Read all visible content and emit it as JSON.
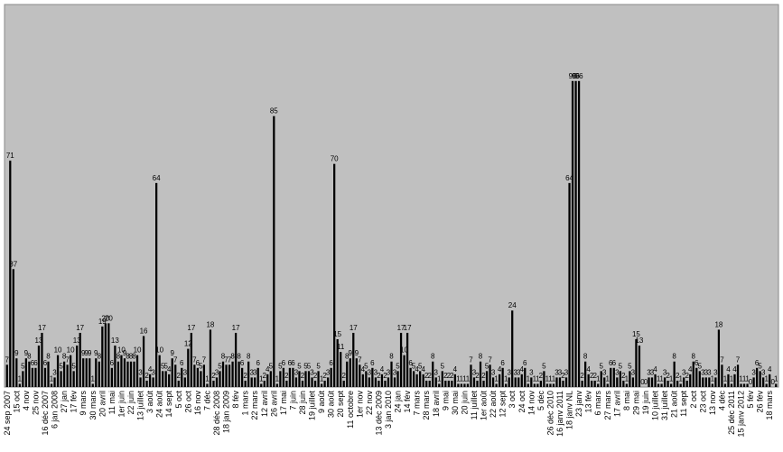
{
  "chart_data": {
    "type": "bar",
    "color": "#000000",
    "background": "#c0c0c0",
    "ylim": [
      0,
      120
    ],
    "categories": [
      "24 sep 2007",
      null,
      null,
      "15 oct",
      null,
      null,
      "4 nov",
      null,
      null,
      "25 nov",
      null,
      null,
      "16 déc 2007",
      null,
      null,
      "6 jan 2008",
      null,
      null,
      "27 jan",
      null,
      null,
      "17 fév",
      null,
      null,
      "9 mars",
      null,
      null,
      "30 mars",
      null,
      null,
      "20 avril",
      null,
      null,
      "11 mai",
      null,
      null,
      "1er juin",
      null,
      null,
      "22 juin",
      null,
      null,
      "13 juillet",
      null,
      null,
      "3 août",
      null,
      null,
      "24 août",
      null,
      null,
      "14 sept",
      null,
      null,
      "5 oct",
      null,
      null,
      "26 oct",
      null,
      null,
      "16 nov",
      null,
      null,
      "7 déc",
      null,
      null,
      "28 déc 2008",
      null,
      null,
      "18 jan 2009",
      null,
      null,
      "8 fév",
      null,
      null,
      "1 mars",
      null,
      null,
      "22 mars",
      null,
      null,
      "12 avril",
      null,
      null,
      "26 avril",
      null,
      null,
      "17 mai",
      null,
      null,
      "7 juin",
      null,
      null,
      "28 juin",
      null,
      null,
      "19 juillet",
      null,
      null,
      "9 août",
      null,
      null,
      "30 août",
      null,
      null,
      "20 sept",
      null,
      null,
      "11 octobre",
      null,
      null,
      "1er nov",
      null,
      null,
      "22 nov",
      null,
      null,
      "13 déc 2009",
      null,
      null,
      "3 jan 2010",
      null,
      null,
      "24 jan",
      null,
      null,
      "14 fév",
      null,
      null,
      "7 mars",
      null,
      null,
      "28 mars",
      null,
      null,
      "18 avril",
      null,
      null,
      "9 mai",
      null,
      null,
      "30 mai",
      null,
      null,
      "20 juin",
      null,
      null,
      "11 juillet",
      null,
      null,
      "1er août",
      null,
      null,
      "22 août",
      null,
      null,
      "12 sept",
      null,
      null,
      "3 oct",
      null,
      null,
      "24 oct",
      null,
      null,
      "14 nov",
      null,
      null,
      "5 déc",
      null,
      null,
      "26 déc 2010",
      null,
      null,
      "16 janv 2011",
      null,
      null,
      "18 janv NL",
      null,
      null,
      "23 janv",
      null,
      null,
      "13 fév",
      null,
      null,
      "6 mars",
      null,
      null,
      "27 mars",
      null,
      null,
      "17 avril",
      null,
      null,
      "8 mai",
      null,
      null,
      "29 mai",
      null,
      null,
      "19 juin",
      null,
      null,
      "10 juillet",
      null,
      null,
      "31 juillet",
      null,
      null,
      "21 août",
      null,
      null,
      "11 sept",
      null,
      null,
      "2 oct",
      null,
      null,
      "23 oct",
      null,
      null,
      "13 nov",
      null,
      null,
      "4 déc",
      null,
      null,
      "25 déc 2011",
      null,
      null,
      "15 janv 2012",
      null,
      null,
      "5 fév",
      null,
      null,
      "26 fév",
      null,
      null,
      "18 mars",
      null,
      null
    ],
    "values": [
      7,
      71,
      37,
      9,
      1,
      5,
      9,
      8,
      6,
      6,
      13,
      17,
      6,
      8,
      1,
      3,
      10,
      5,
      8,
      7,
      10,
      5,
      13,
      17,
      9,
      9,
      9,
      1,
      9,
      8,
      19,
      20,
      20,
      6,
      13,
      8,
      10,
      9,
      8,
      8,
      8,
      10,
      3,
      16,
      2,
      4,
      3,
      64,
      10,
      5,
      5,
      4,
      9,
      7,
      2,
      6,
      3,
      12,
      17,
      7,
      6,
      5,
      7,
      1,
      18,
      2,
      3,
      5,
      8,
      7,
      7,
      8,
      17,
      8,
      6,
      2,
      8,
      3,
      3,
      6,
      1,
      2,
      4,
      5,
      85,
      1,
      5,
      6,
      2,
      6,
      6,
      3,
      5,
      2,
      5,
      5,
      3,
      2,
      5,
      1,
      2,
      3,
      6,
      70,
      15,
      11,
      2,
      8,
      9,
      17,
      9,
      7,
      4,
      5,
      3,
      6,
      3,
      2,
      4,
      2,
      3,
      8,
      3,
      5,
      17,
      10,
      17,
      6,
      5,
      4,
      5,
      4,
      2,
      2,
      8,
      3,
      1,
      5,
      2,
      2,
      2,
      4,
      1,
      1,
      1,
      1,
      7,
      3,
      2,
      8,
      2,
      5,
      7,
      3,
      1,
      4,
      6,
      1,
      3,
      24,
      3,
      3,
      4,
      6,
      1,
      3,
      1,
      1,
      2,
      5,
      1,
      1,
      1,
      3,
      3,
      2,
      3,
      64,
      96,
      96,
      96,
      2,
      8,
      4,
      2,
      2,
      1,
      5,
      3,
      1,
      6,
      6,
      3,
      5,
      2,
      1,
      5,
      3,
      15,
      13,
      0,
      0,
      3,
      3,
      4,
      1,
      1,
      3,
      2,
      1,
      8,
      2,
      1,
      3,
      2,
      4,
      8,
      6,
      5,
      3,
      3,
      3,
      1,
      3,
      18,
      7,
      1,
      4,
      1,
      4,
      7,
      1,
      1,
      1,
      0,
      3,
      6,
      5,
      3,
      1,
      4,
      0,
      1
    ]
  }
}
